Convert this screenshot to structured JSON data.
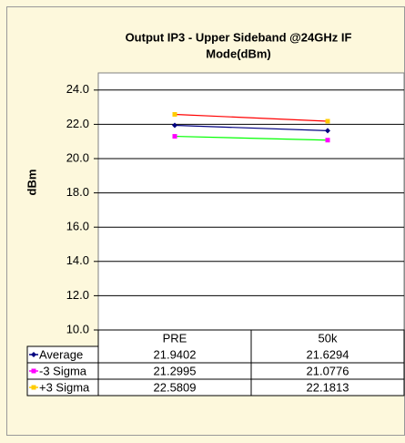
{
  "chart_data": {
    "type": "line",
    "title": [
      "Output IP3 - Upper Sideband @24GHz IF",
      "Mode(dBm)"
    ],
    "y_label": "dBm",
    "categories": [
      "PRE",
      "50k"
    ],
    "series": [
      {
        "name": "Average",
        "color": "#000080",
        "marker_color": "#000080",
        "marker": "diamond",
        "values": [
          21.9402,
          21.6294
        ]
      },
      {
        "name": "-3 Sigma",
        "color": "#00ff00",
        "marker_color": "#ff00ff",
        "marker": "square",
        "values": [
          21.2995,
          21.0776
        ]
      },
      {
        "name": "+3 Sigma",
        "color": "#ff0000",
        "marker_color": "#ffcc00",
        "marker": "square",
        "values": [
          22.5809,
          22.1813
        ]
      }
    ],
    "ylim": [
      10,
      25
    ],
    "yticks": [
      {
        "value": 10,
        "label": "10.0"
      },
      {
        "value": 12,
        "label": "12.0"
      },
      {
        "value": 14,
        "label": "14.0"
      },
      {
        "value": 16,
        "label": "16.0"
      },
      {
        "value": 18,
        "label": "18.0"
      },
      {
        "value": 20,
        "label": "20.0"
      },
      {
        "value": 22,
        "label": "22.0"
      },
      {
        "value": 24,
        "label": "24.0"
      }
    ],
    "grid": true
  }
}
